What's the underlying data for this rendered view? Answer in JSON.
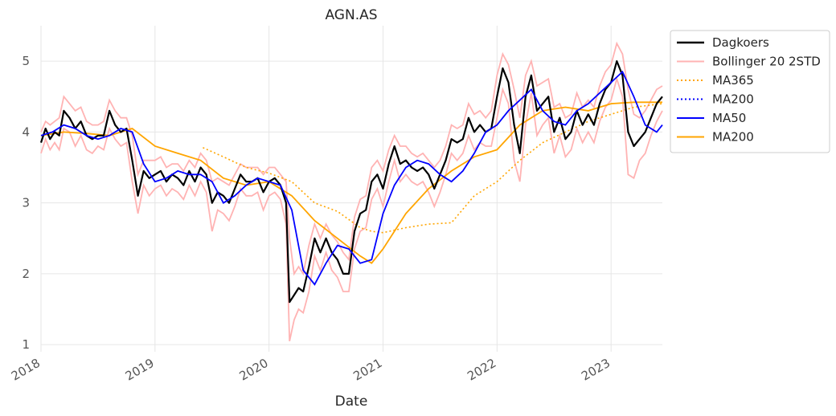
{
  "chart_data": {
    "type": "line",
    "title": "AGN.AS",
    "xlabel": "Date",
    "ylabel": "",
    "xlim": [
      2018.0,
      2023.45
    ],
    "ylim": [
      0.9,
      5.5
    ],
    "xticks": [
      {
        "value": 2018,
        "label": "2018"
      },
      {
        "value": 2019,
        "label": "2019"
      },
      {
        "value": 2020,
        "label": "2020"
      },
      {
        "value": 2021,
        "label": "2021"
      },
      {
        "value": 2022,
        "label": "2022"
      },
      {
        "value": 2023,
        "label": "2023"
      }
    ],
    "yticks": [
      {
        "value": 1,
        "label": "1"
      },
      {
        "value": 2,
        "label": "2"
      },
      {
        "value": 3,
        "label": "3"
      },
      {
        "value": 4,
        "label": "4"
      },
      {
        "value": 5,
        "label": "5"
      }
    ],
    "grid": true,
    "legend_position": "outside-top-right",
    "series": [
      {
        "name": "Dagkoers",
        "color": "#000000",
        "style": "solid",
        "x": [
          2018.0,
          2018.04,
          2018.08,
          2018.12,
          2018.16,
          2018.2,
          2018.25,
          2018.3,
          2018.35,
          2018.4,
          2018.45,
          2018.5,
          2018.55,
          2018.6,
          2018.65,
          2018.7,
          2018.75,
          2018.8,
          2018.85,
          2018.9,
          2018.95,
          2019.0,
          2019.05,
          2019.1,
          2019.15,
          2019.2,
          2019.25,
          2019.3,
          2019.35,
          2019.4,
          2019.45,
          2019.5,
          2019.55,
          2019.6,
          2019.65,
          2019.7,
          2019.75,
          2019.8,
          2019.85,
          2019.9,
          2019.95,
          2020.0,
          2020.05,
          2020.1,
          2020.15,
          2020.18,
          2020.22,
          2020.26,
          2020.3,
          2020.35,
          2020.4,
          2020.45,
          2020.5,
          2020.55,
          2020.6,
          2020.65,
          2020.7,
          2020.75,
          2020.8,
          2020.85,
          2020.9,
          2020.95,
          2021.0,
          2021.05,
          2021.1,
          2021.15,
          2021.2,
          2021.25,
          2021.3,
          2021.35,
          2021.4,
          2021.45,
          2021.5,
          2021.55,
          2021.6,
          2021.65,
          2021.7,
          2021.75,
          2021.8,
          2021.85,
          2021.9,
          2021.95,
          2022.0,
          2022.05,
          2022.1,
          2022.15,
          2022.2,
          2022.25,
          2022.3,
          2022.35,
          2022.4,
          2022.45,
          2022.5,
          2022.55,
          2022.6,
          2022.65,
          2022.7,
          2022.75,
          2022.8,
          2022.85,
          2022.9,
          2022.95,
          2023.0,
          2023.05,
          2023.1,
          2023.15,
          2023.2,
          2023.25,
          2023.3,
          2023.35,
          2023.4,
          2023.45
        ],
        "values": [
          3.85,
          4.05,
          3.9,
          4.0,
          3.95,
          4.3,
          4.2,
          4.05,
          4.15,
          3.95,
          3.9,
          3.95,
          3.95,
          4.3,
          4.1,
          4.0,
          4.05,
          3.6,
          3.1,
          3.45,
          3.35,
          3.4,
          3.45,
          3.3,
          3.4,
          3.35,
          3.25,
          3.45,
          3.3,
          3.5,
          3.4,
          3.0,
          3.15,
          3.1,
          3.0,
          3.2,
          3.4,
          3.3,
          3.3,
          3.35,
          3.15,
          3.3,
          3.35,
          3.25,
          3.0,
          1.6,
          1.7,
          1.8,
          1.75,
          2.1,
          2.5,
          2.3,
          2.5,
          2.3,
          2.2,
          2.0,
          2.0,
          2.6,
          2.85,
          2.9,
          3.3,
          3.4,
          3.2,
          3.55,
          3.8,
          3.55,
          3.6,
          3.5,
          3.45,
          3.5,
          3.4,
          3.2,
          3.4,
          3.6,
          3.9,
          3.85,
          3.9,
          4.2,
          4.0,
          4.1,
          4.0,
          4.05,
          4.5,
          4.9,
          4.7,
          4.1,
          3.7,
          4.5,
          4.8,
          4.3,
          4.4,
          4.5,
          4.0,
          4.2,
          3.9,
          4.0,
          4.3,
          4.1,
          4.25,
          4.1,
          4.4,
          4.6,
          4.7,
          5.0,
          4.8,
          4.0,
          3.8,
          3.9,
          4.0,
          4.2,
          4.4,
          4.5
        ]
      },
      {
        "name": "Bollinger 20 2STD",
        "color": "#ffb3b3",
        "style": "solid",
        "upper": [
          4.0,
          4.15,
          4.1,
          4.15,
          4.2,
          4.5,
          4.4,
          4.3,
          4.35,
          4.15,
          4.1,
          4.1,
          4.15,
          4.45,
          4.3,
          4.2,
          4.2,
          3.95,
          3.4,
          3.6,
          3.6,
          3.6,
          3.65,
          3.5,
          3.55,
          3.55,
          3.45,
          3.6,
          3.5,
          3.7,
          3.6,
          3.3,
          3.35,
          3.3,
          3.25,
          3.4,
          3.55,
          3.5,
          3.5,
          3.5,
          3.4,
          3.5,
          3.5,
          3.4,
          3.3,
          2.5,
          2.0,
          2.1,
          2.0,
          2.4,
          2.7,
          2.5,
          2.7,
          2.55,
          2.45,
          2.3,
          2.2,
          2.8,
          3.05,
          3.1,
          3.5,
          3.6,
          3.45,
          3.75,
          3.95,
          3.8,
          3.8,
          3.7,
          3.65,
          3.7,
          3.6,
          3.5,
          3.6,
          3.8,
          4.1,
          4.05,
          4.1,
          4.4,
          4.25,
          4.3,
          4.2,
          4.3,
          4.8,
          5.1,
          4.95,
          4.6,
          4.2,
          4.8,
          5.0,
          4.65,
          4.7,
          4.75,
          4.35,
          4.4,
          4.2,
          4.25,
          4.55,
          4.35,
          4.45,
          4.35,
          4.65,
          4.85,
          4.95,
          5.25,
          5.1,
          4.6,
          4.25,
          4.2,
          4.3,
          4.45,
          4.6,
          4.65
        ],
        "lower": [
          3.7,
          3.9,
          3.75,
          3.85,
          3.75,
          4.05,
          4.0,
          3.8,
          3.95,
          3.75,
          3.7,
          3.8,
          3.75,
          4.05,
          3.9,
          3.8,
          3.85,
          3.3,
          2.85,
          3.25,
          3.1,
          3.2,
          3.25,
          3.1,
          3.2,
          3.15,
          3.05,
          3.25,
          3.1,
          3.3,
          3.15,
          2.6,
          2.9,
          2.85,
          2.75,
          2.95,
          3.2,
          3.1,
          3.1,
          3.15,
          2.9,
          3.1,
          3.15,
          3.05,
          2.7,
          1.05,
          1.35,
          1.5,
          1.45,
          1.75,
          2.25,
          2.05,
          2.3,
          2.05,
          1.95,
          1.75,
          1.75,
          2.35,
          2.6,
          2.65,
          3.05,
          3.2,
          2.95,
          3.3,
          3.6,
          3.3,
          3.4,
          3.3,
          3.25,
          3.3,
          3.15,
          2.95,
          3.15,
          3.4,
          3.7,
          3.6,
          3.7,
          3.95,
          3.75,
          3.85,
          3.8,
          3.8,
          4.2,
          4.6,
          4.4,
          3.6,
          3.3,
          4.1,
          4.55,
          3.95,
          4.1,
          4.2,
          3.7,
          3.95,
          3.65,
          3.75,
          4.05,
          3.85,
          4.0,
          3.85,
          4.15,
          4.35,
          4.45,
          4.75,
          4.5,
          3.4,
          3.35,
          3.6,
          3.7,
          3.95,
          4.15,
          4.3
        ]
      },
      {
        "name": "MA365",
        "color": "#ffa500",
        "style": "dotted",
        "x": [
          2019.42,
          2019.6,
          2019.8,
          2020.0,
          2020.2,
          2020.4,
          2020.6,
          2020.8,
          2020.9,
          2021.0,
          2021.2,
          2021.4,
          2021.6,
          2021.8,
          2022.0,
          2022.2,
          2022.4,
          2022.6,
          2022.8,
          2023.0,
          2023.2,
          2023.45
        ],
        "values": [
          3.78,
          3.65,
          3.5,
          3.42,
          3.3,
          3.0,
          2.88,
          2.65,
          2.6,
          2.58,
          2.65,
          2.7,
          2.72,
          3.1,
          3.3,
          3.6,
          3.85,
          4.0,
          4.15,
          4.25,
          4.35,
          4.4
        ]
      },
      {
        "name": "MA200",
        "color": "#0000ff",
        "style": "dotted",
        "x": [],
        "values": []
      },
      {
        "name": "MA50",
        "color": "#0000ff",
        "style": "solid",
        "x": [
          2018.0,
          2018.1,
          2018.2,
          2018.3,
          2018.4,
          2018.5,
          2018.6,
          2018.7,
          2018.8,
          2018.9,
          2019.0,
          2019.1,
          2019.2,
          2019.3,
          2019.4,
          2019.5,
          2019.6,
          2019.7,
          2019.8,
          2019.9,
          2020.0,
          2020.1,
          2020.2,
          2020.3,
          2020.4,
          2020.5,
          2020.6,
          2020.7,
          2020.8,
          2020.9,
          2021.0,
          2021.1,
          2021.2,
          2021.3,
          2021.4,
          2021.5,
          2021.6,
          2021.7,
          2021.8,
          2021.9,
          2022.0,
          2022.1,
          2022.2,
          2022.3,
          2022.4,
          2022.5,
          2022.6,
          2022.7,
          2022.8,
          2022.9,
          2023.0,
          2023.1,
          2023.2,
          2023.3,
          2023.4,
          2023.45
        ],
        "values": [
          3.95,
          4.0,
          4.1,
          4.05,
          3.95,
          3.9,
          3.95,
          4.05,
          4.0,
          3.55,
          3.3,
          3.35,
          3.45,
          3.4,
          3.4,
          3.3,
          3.0,
          3.1,
          3.25,
          3.35,
          3.3,
          3.25,
          2.9,
          2.05,
          1.85,
          2.15,
          2.4,
          2.35,
          2.15,
          2.2,
          2.85,
          3.25,
          3.5,
          3.6,
          3.55,
          3.4,
          3.3,
          3.45,
          3.7,
          4.0,
          4.1,
          4.3,
          4.45,
          4.6,
          4.3,
          4.15,
          4.1,
          4.3,
          4.4,
          4.55,
          4.7,
          4.85,
          4.5,
          4.1,
          4.0,
          4.1
        ]
      },
      {
        "name": "MA200",
        "color": "#ffa500",
        "style": "solid",
        "x": [
          2018.0,
          2018.2,
          2018.4,
          2018.6,
          2018.8,
          2019.0,
          2019.2,
          2019.4,
          2019.6,
          2019.8,
          2020.0,
          2020.2,
          2020.4,
          2020.6,
          2020.8,
          2020.9,
          2021.0,
          2021.2,
          2021.4,
          2021.6,
          2021.8,
          2022.0,
          2022.2,
          2022.4,
          2022.6,
          2022.8,
          2023.0,
          2023.2,
          2023.45
        ],
        "values": [
          3.95,
          4.0,
          3.98,
          3.95,
          4.05,
          3.8,
          3.7,
          3.6,
          3.35,
          3.25,
          3.3,
          3.1,
          2.75,
          2.5,
          2.25,
          2.15,
          2.35,
          2.85,
          3.2,
          3.45,
          3.65,
          3.75,
          4.1,
          4.3,
          4.35,
          4.3,
          4.4,
          4.42,
          4.42
        ]
      }
    ],
    "legend": [
      {
        "label": "Dagkoers",
        "color": "#000000",
        "style": "solid"
      },
      {
        "label": "Bollinger 20 2STD",
        "color": "#ffb3b3",
        "style": "solid"
      },
      {
        "label": "MA365",
        "color": "#ffa500",
        "style": "dotted"
      },
      {
        "label": "MA200",
        "color": "#0000ff",
        "style": "dotted"
      },
      {
        "label": "MA50",
        "color": "#0000ff",
        "style": "solid"
      },
      {
        "label": "MA200",
        "color": "#ffa500",
        "style": "solid"
      }
    ]
  }
}
